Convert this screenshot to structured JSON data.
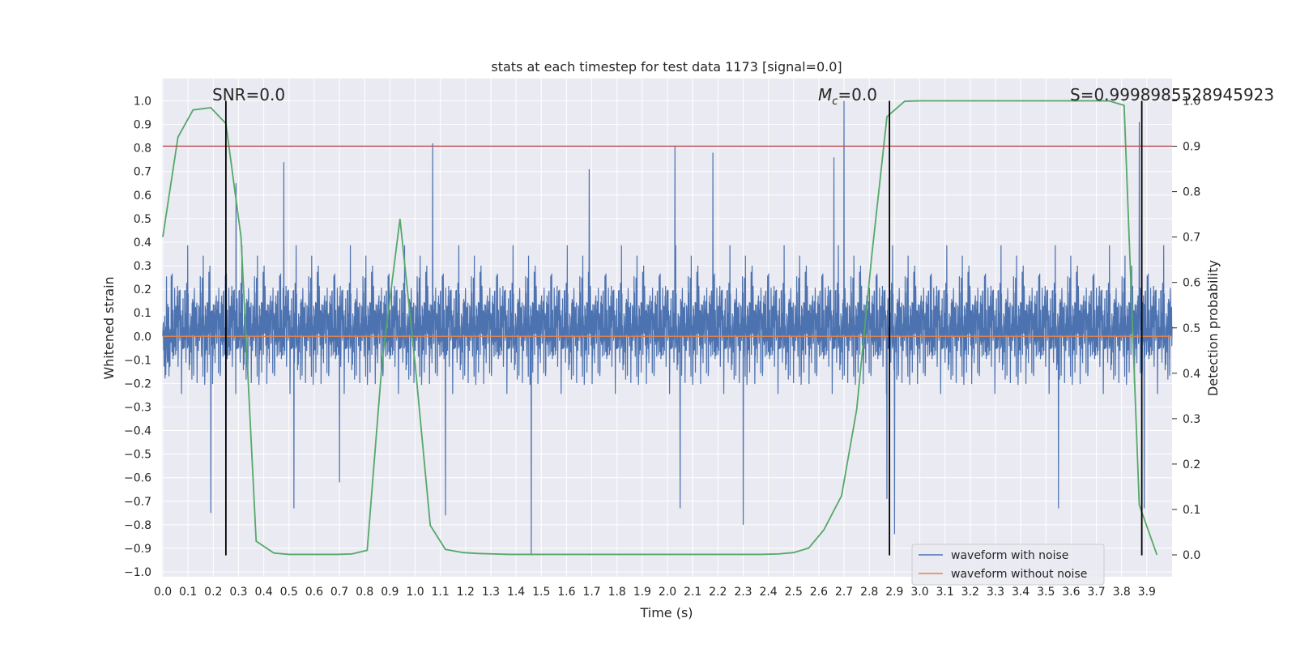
{
  "chart_data": {
    "type": "line",
    "title": "stats at each timestep for test data 1173 [signal=0.0]",
    "xlabel": "Time (s)",
    "ylabel": "Whitened strain",
    "ylabel_right": "Detection probability",
    "xlim": [
      0.0,
      4.0
    ],
    "ylim": [
      -1.05,
      1.08
    ],
    "ylim_right": [
      -0.05,
      1.0
    ],
    "grid": true,
    "legend_position": "lower-right",
    "x_ticks": [
      "0.0",
      "0.1",
      "0.2",
      "0.3",
      "0.4",
      "0.5",
      "0.6",
      "0.7",
      "0.8",
      "0.9",
      "1.0",
      "1.1",
      "1.2",
      "1.3",
      "1.4",
      "1.5",
      "1.6",
      "1.7",
      "1.8",
      "1.9",
      "2.0",
      "2.1",
      "2.2",
      "2.3",
      "2.4",
      "2.5",
      "2.6",
      "2.7",
      "2.8",
      "2.9",
      "3.0",
      "3.1",
      "3.2",
      "3.3",
      "3.4",
      "3.5",
      "3.6",
      "3.7",
      "3.8",
      "3.9"
    ],
    "y_ticks": [
      "1.0",
      "0.9",
      "0.8",
      "0.7",
      "0.6",
      "0.5",
      "0.4",
      "0.3",
      "0.2",
      "0.1",
      "0.0",
      "−0.1",
      "−0.2",
      "−0.3",
      "−0.4",
      "−0.5",
      "−0.6",
      "−0.7",
      "−0.8",
      "−0.9",
      "−1.0"
    ],
    "y_ticks_right": [
      "1.0",
      "0.9",
      "0.8",
      "0.7",
      "0.6",
      "0.5",
      "0.4",
      "0.3",
      "0.2",
      "0.1",
      "0.0"
    ],
    "annotations": {
      "snr": "SNR=0.0",
      "mc_symbol": "M",
      "mc_sub": "c",
      "mc_value": "=0.0",
      "s": "S=0.9998985528945923"
    },
    "series": [
      {
        "name": "waveform with noise",
        "color": "#4c72b0",
        "axis": "left",
        "note": "dense noise trace; envelope spans approx -0.93..1.0",
        "peaks": [
          {
            "x": 0.25,
            "y": 0.93
          },
          {
            "x": 0.29,
            "y": 0.65
          },
          {
            "x": 0.48,
            "y": 0.74
          },
          {
            "x": 0.7,
            "y": 0.68
          },
          {
            "x": 1.07,
            "y": 0.82
          },
          {
            "x": 1.69,
            "y": 0.71
          },
          {
            "x": 2.03,
            "y": 0.81
          },
          {
            "x": 2.18,
            "y": 0.78
          },
          {
            "x": 2.66,
            "y": 0.76
          },
          {
            "x": 2.7,
            "y": 1.0
          },
          {
            "x": 3.87,
            "y": 0.91
          }
        ],
        "troughs": [
          {
            "x": 0.19,
            "y": -0.75
          },
          {
            "x": 0.25,
            "y": -0.67
          },
          {
            "x": 0.52,
            "y": -0.73
          },
          {
            "x": 0.7,
            "y": -0.62
          },
          {
            "x": 1.12,
            "y": -0.76
          },
          {
            "x": 1.46,
            "y": -0.93
          },
          {
            "x": 2.05,
            "y": -0.73
          },
          {
            "x": 2.3,
            "y": -0.8
          },
          {
            "x": 2.87,
            "y": -0.69
          },
          {
            "x": 2.9,
            "y": -0.84
          },
          {
            "x": 3.55,
            "y": -0.73
          },
          {
            "x": 3.89,
            "y": -0.73
          }
        ]
      },
      {
        "name": "waveform without noise",
        "color": "#dd8452",
        "axis": "left",
        "x": [
          0.0,
          4.0
        ],
        "y": [
          0.0,
          0.0
        ]
      },
      {
        "color": "#55a868",
        "axis": "right",
        "x": [
          0.0,
          0.06,
          0.12,
          0.19,
          0.25,
          0.31,
          0.37,
          0.44,
          0.5,
          0.56,
          0.62,
          0.69,
          0.75,
          0.81,
          0.87,
          0.94,
          1.0,
          1.06,
          1.12,
          1.19,
          1.25,
          1.31,
          1.37,
          1.44,
          1.5,
          1.56,
          1.62,
          1.69,
          1.75,
          1.81,
          1.87,
          1.94,
          2.0,
          2.06,
          2.12,
          2.19,
          2.25,
          2.31,
          2.37,
          2.44,
          2.5,
          2.56,
          2.62,
          2.69,
          2.75,
          2.81,
          2.87,
          2.94,
          3.0,
          3.06,
          3.12,
          3.19,
          3.25,
          3.31,
          3.37,
          3.44,
          3.5,
          3.56,
          3.62,
          3.69,
          3.75,
          3.81,
          3.87,
          3.94
        ],
        "y": [
          0.7,
          0.92,
          0.98,
          0.985,
          0.95,
          0.7,
          0.03,
          0.004,
          0.001,
          0.001,
          0.001,
          0.001,
          0.002,
          0.01,
          0.43,
          0.74,
          0.42,
          0.065,
          0.012,
          0.005,
          0.003,
          0.002,
          0.001,
          0.001,
          0.001,
          0.001,
          0.001,
          0.001,
          0.001,
          0.001,
          0.001,
          0.001,
          0.001,
          0.001,
          0.001,
          0.001,
          0.001,
          0.001,
          0.001,
          0.002,
          0.005,
          0.015,
          0.055,
          0.13,
          0.32,
          0.66,
          0.965,
          0.999,
          1.0,
          1.0,
          1.0,
          1.0,
          1.0,
          1.0,
          1.0,
          1.0,
          1.0,
          1.0,
          1.0,
          1.0,
          0.9999,
          0.99,
          0.11,
          0.0
        ]
      },
      {
        "color": "#c44e52",
        "axis": "right",
        "x": [
          0.0,
          4.0
        ],
        "y": [
          0.9,
          0.9
        ]
      }
    ],
    "vertical_lines": [
      {
        "x": 0.25,
        "y_range": [
          -0.93,
          1.0
        ],
        "color": "#000000"
      },
      {
        "x": 2.88,
        "y_range": [
          -0.93,
          1.0
        ],
        "color": "#000000"
      },
      {
        "x": 3.88,
        "y_range": [
          -0.93,
          1.0
        ],
        "color": "#000000"
      }
    ],
    "colors": {
      "plot_background": "#eaeaf2",
      "grid": "#ffffff",
      "text": "#262626"
    }
  }
}
